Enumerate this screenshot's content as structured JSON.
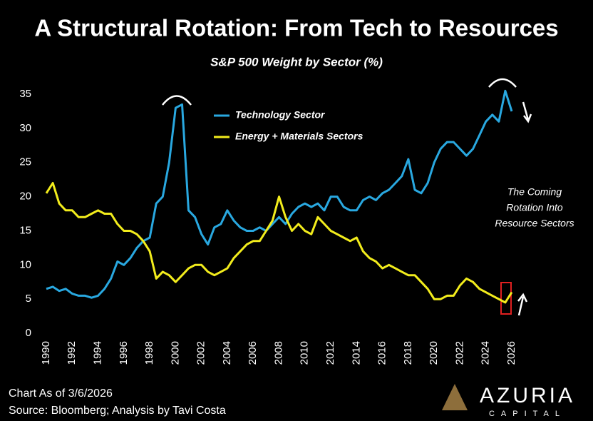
{
  "chart_data": {
    "type": "line",
    "title": "A Structural Rotation: From Tech to Resources",
    "subtitle": "S&P 500 Weight by Sector (%)",
    "x": [
      1990,
      1990.5,
      1991,
      1991.5,
      1992,
      1992.5,
      1993,
      1993.5,
      1994,
      1994.5,
      1995,
      1995.5,
      1996,
      1996.5,
      1997,
      1997.5,
      1998,
      1998.5,
      1999,
      1999.5,
      2000,
      2000.5,
      2001,
      2001.5,
      2002,
      2002.5,
      2003,
      2003.5,
      2004,
      2004.5,
      2005,
      2005.5,
      2006,
      2006.5,
      2007,
      2007.5,
      2008,
      2008.5,
      2009,
      2009.5,
      2010,
      2010.5,
      2011,
      2011.5,
      2012,
      2012.5,
      2013,
      2013.5,
      2014,
      2014.5,
      2015,
      2015.5,
      2016,
      2016.5,
      2017,
      2017.5,
      2018,
      2018.5,
      2019,
      2019.5,
      2020,
      2020.5,
      2021,
      2021.5,
      2022,
      2022.5,
      2023,
      2023.5,
      2024,
      2024.5,
      2025,
      2025.5,
      2026
    ],
    "series": [
      {
        "name": "Technology Sector",
        "color": "#29a8e0",
        "values": [
          6.5,
          6.8,
          6.2,
          6.5,
          5.8,
          5.5,
          5.5,
          5.2,
          5.5,
          6.5,
          8,
          10.5,
          10,
          11,
          12.5,
          13.5,
          14,
          19,
          20,
          25,
          33,
          33.5,
          18,
          17,
          14.5,
          13,
          15.5,
          16,
          18,
          16.5,
          15.5,
          15,
          15,
          15.5,
          15,
          16,
          17,
          16,
          17.5,
          18.5,
          19,
          18.5,
          19,
          18,
          20,
          20,
          18.5,
          18,
          18,
          19.5,
          20,
          19.5,
          20.5,
          21,
          22,
          23,
          25.5,
          21,
          20.5,
          22,
          25,
          27,
          28,
          28,
          27,
          26,
          27,
          29,
          31,
          32,
          31,
          35.5,
          32.5
        ]
      },
      {
        "name": "Energy + Materials Sectors",
        "color": "#f2ec1c",
        "values": [
          20.5,
          22,
          19,
          18,
          18,
          17,
          17,
          17.5,
          18,
          17.5,
          17.5,
          16,
          15,
          15,
          14.5,
          13.5,
          12,
          8,
          9,
          8.5,
          7.5,
          8.5,
          9.5,
          10,
          10,
          9,
          8.5,
          9,
          9.5,
          11,
          12,
          13,
          13.5,
          13.5,
          15,
          16.5,
          20,
          17,
          15,
          16,
          15,
          14.5,
          17,
          16,
          15,
          14.5,
          14,
          13.5,
          14,
          12,
          11,
          10.5,
          9.5,
          10,
          9.5,
          9,
          8.5,
          8.5,
          7.5,
          6.5,
          5,
          5,
          5.5,
          5.5,
          7,
          8,
          7.5,
          6.5,
          6,
          5.5,
          5,
          4.5,
          6
        ]
      }
    ],
    "xlim": [
      1990,
      2026
    ],
    "xticks": [
      1990,
      1992,
      1994,
      1996,
      1998,
      2000,
      2002,
      2004,
      2006,
      2008,
      2010,
      2012,
      2014,
      2016,
      2018,
      2020,
      2022,
      2024,
      2026
    ],
    "ylim": [
      0,
      36
    ],
    "yticks": [
      0,
      5,
      10,
      15,
      20,
      25,
      30,
      35
    ],
    "annotation": [
      "The Coming",
      "Rotation Into",
      "Resource Sectors"
    ],
    "footnote": [
      "Chart As of 3/6/2026",
      "Source: Bloomberg; Analysis by Tavi Costa"
    ],
    "logo": {
      "name": "AZURIA",
      "sub": "CAPITAL"
    }
  }
}
